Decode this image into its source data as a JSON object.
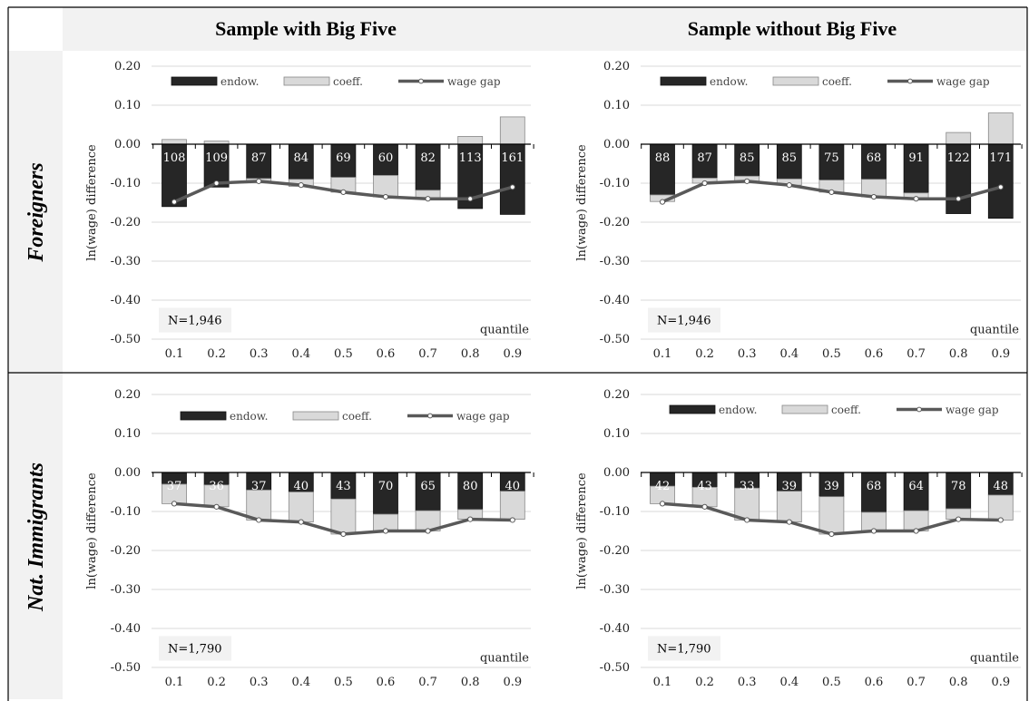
{
  "columns": [
    "Sample with Big Five",
    "Sample without Big Five"
  ],
  "rows": [
    "Foreigners",
    "Nat. Immigrants"
  ],
  "colors": {
    "endow": "#262626",
    "coeff": "#d9d9d9",
    "wage_gap": "#595959",
    "header_bg": "#f2f2f2"
  },
  "chart_data": [
    {
      "type": "bar",
      "row": "Foreigners",
      "column": "Sample with Big Five",
      "categories": [
        "0.1",
        "0.2",
        "0.3",
        "0.4",
        "0.5",
        "0.6",
        "0.7",
        "0.8",
        "0.9"
      ],
      "ylabel": "ln(wage) difference",
      "xlabel": "quantile",
      "yticks": [
        "0.20",
        "0.10",
        "0.00",
        "-0.10",
        "-0.20",
        "-0.30",
        "-0.40",
        "-0.50"
      ],
      "ylim": [
        -0.5,
        0.2
      ],
      "grid": true,
      "legend_position": "top",
      "note": "N=1,946",
      "series": [
        {
          "name": "endow.",
          "values": [
            -0.16,
            -0.11,
            -0.088,
            -0.09,
            -0.085,
            -0.08,
            -0.118,
            -0.165,
            -0.18
          ]
        },
        {
          "name": "coeff.",
          "values": [
            0.012,
            0.008,
            -0.01,
            -0.018,
            -0.038,
            -0.055,
            -0.022,
            0.02,
            0.07
          ]
        },
        {
          "name": "wage gap",
          "values": [
            -0.148,
            -0.1,
            -0.095,
            -0.105,
            -0.123,
            -0.135,
            -0.14,
            -0.14,
            -0.11
          ]
        }
      ],
      "bar_labels": [
        "108",
        "109",
        "87",
        "84",
        "69",
        "60",
        "82",
        "113",
        "161"
      ]
    },
    {
      "type": "bar",
      "row": "Foreigners",
      "column": "Sample without Big Five",
      "categories": [
        "0.1",
        "0.2",
        "0.3",
        "0.4",
        "0.5",
        "0.6",
        "0.7",
        "0.8",
        "0.9"
      ],
      "ylabel": "ln(wage) difference",
      "xlabel": "quantile",
      "yticks": [
        "0.20",
        "0.10",
        "0.00",
        "-0.10",
        "-0.20",
        "-0.30",
        "-0.40",
        "-0.50"
      ],
      "ylim": [
        -0.5,
        0.2
      ],
      "grid": true,
      "legend_position": "top",
      "note": "N=1,946",
      "series": [
        {
          "name": "endow.",
          "values": [
            -0.13,
            -0.087,
            -0.082,
            -0.089,
            -0.092,
            -0.09,
            -0.125,
            -0.178,
            -0.19
          ]
        },
        {
          "name": "coeff.",
          "values": [
            -0.017,
            -0.013,
            -0.013,
            -0.016,
            -0.031,
            -0.045,
            -0.015,
            0.03,
            0.08
          ]
        },
        {
          "name": "wage gap",
          "values": [
            -0.148,
            -0.1,
            -0.095,
            -0.105,
            -0.123,
            -0.135,
            -0.14,
            -0.14,
            -0.11
          ]
        }
      ],
      "bar_labels": [
        "88",
        "87",
        "85",
        "85",
        "75",
        "68",
        "91",
        "122",
        "171"
      ]
    },
    {
      "type": "bar",
      "row": "Nat. Immigrants",
      "column": "Sample with Big Five",
      "categories": [
        "0.1",
        "0.2",
        "0.3",
        "0.4",
        "0.5",
        "0.6",
        "0.7",
        "0.8",
        "0.9"
      ],
      "ylabel": "ln(wage) difference",
      "xlabel": "quantile",
      "yticks": [
        "0.20",
        "0.10",
        "0.00",
        "-0.10",
        "-0.20",
        "-0.30",
        "-0.40",
        "-0.50"
      ],
      "ylim": [
        -0.5,
        0.2
      ],
      "grid": true,
      "legend_position": "top",
      "note": "N=1,790",
      "series": [
        {
          "name": "endow.",
          "values": [
            -0.03,
            -0.032,
            -0.045,
            -0.05,
            -0.068,
            -0.107,
            -0.098,
            -0.095,
            -0.048
          ]
        },
        {
          "name": "coeff.",
          "values": [
            -0.05,
            -0.056,
            -0.077,
            -0.077,
            -0.09,
            -0.043,
            -0.052,
            -0.025,
            -0.072
          ]
        },
        {
          "name": "wage gap",
          "values": [
            -0.08,
            -0.088,
            -0.122,
            -0.127,
            -0.158,
            -0.15,
            -0.15,
            -0.12,
            -0.122
          ]
        }
      ],
      "bar_labels": [
        "37",
        "36",
        "37",
        "40",
        "43",
        "70",
        "65",
        "80",
        "40"
      ]
    },
    {
      "type": "bar",
      "row": "Nat. Immigrants",
      "column": "Sample without Big Five",
      "categories": [
        "0.1",
        "0.2",
        "0.3",
        "0.4",
        "0.5",
        "0.6",
        "0.7",
        "0.8",
        "0.9"
      ],
      "ylabel": "ln(wage) difference",
      "xlabel": "quantile",
      "yticks": [
        "0.20",
        "0.10",
        "0.00",
        "-0.10",
        "-0.20",
        "-0.30",
        "-0.40",
        "-0.50"
      ],
      "ylim": [
        -0.5,
        0.2
      ],
      "grid": true,
      "legend_position": "top",
      "note": "N=1,790",
      "series": [
        {
          "name": "endow.",
          "values": [
            -0.035,
            -0.038,
            -0.04,
            -0.048,
            -0.062,
            -0.102,
            -0.098,
            -0.093,
            -0.058
          ]
        },
        {
          "name": "coeff.",
          "values": [
            -0.045,
            -0.05,
            -0.082,
            -0.079,
            -0.096,
            -0.048,
            -0.052,
            -0.027,
            -0.064
          ]
        },
        {
          "name": "wage gap",
          "values": [
            -0.08,
            -0.088,
            -0.122,
            -0.127,
            -0.158,
            -0.15,
            -0.15,
            -0.12,
            -0.122
          ]
        }
      ],
      "bar_labels": [
        "42",
        "43",
        "33",
        "39",
        "39",
        "68",
        "64",
        "78",
        "48"
      ]
    }
  ]
}
